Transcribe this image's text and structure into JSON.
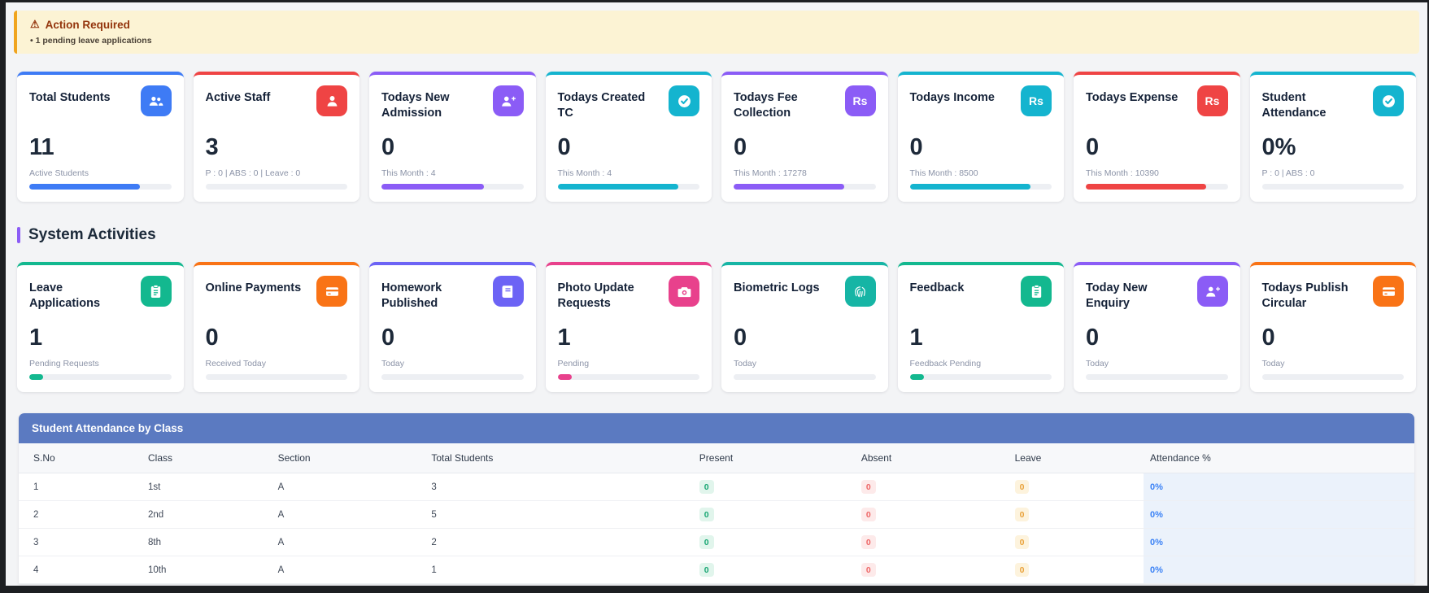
{
  "alert": {
    "title": "Action Required",
    "item": "• 1 pending leave applications",
    "accent": "#f0a41e",
    "bg": "#fcf3d4",
    "text_color": "#93340c"
  },
  "section": {
    "title": "System Activities",
    "accent": "#8c5cf6"
  },
  "stats_row1": [
    {
      "title": "Total Students",
      "icon": "users-icon",
      "accent": "#3e7bf5",
      "value": "11",
      "subtitle": "Active Students",
      "progress": 78
    },
    {
      "title": "Active Staff",
      "icon": "user-icon",
      "accent": "#ef4444",
      "value": "3",
      "subtitle": "P : 0 | ABS : 0 | Leave : 0",
      "progress": 0
    },
    {
      "title": "Todays New Admission",
      "icon": "user-plus-icon",
      "accent": "#8b5cf6",
      "value": "0",
      "subtitle": "This Month : 4",
      "progress": 72
    },
    {
      "title": "Todays Created TC",
      "icon": "check-circle-icon",
      "accent": "#14b4cf",
      "value": "0",
      "subtitle": "This Month : 4",
      "progress": 85
    },
    {
      "title": "Todays Fee Collection",
      "icon": "rupee-icon",
      "accent": "#8b5cf6",
      "value": "0",
      "subtitle": "This Month : 17278",
      "progress": 78
    },
    {
      "title": "Todays Income",
      "icon": "rupee-icon",
      "accent": "#14b4cf",
      "value": "0",
      "subtitle": "This Month : 8500",
      "progress": 85
    },
    {
      "title": "Todays Expense",
      "icon": "rupee-icon",
      "accent": "#ef4444",
      "value": "0",
      "subtitle": "This Month : 10390",
      "progress": 85
    },
    {
      "title": "Student Attendance",
      "icon": "check-circle-icon",
      "accent": "#14b4cf",
      "value": "0%",
      "subtitle": "P : 0 | ABS : 0",
      "progress": 0
    }
  ],
  "stats_row2": [
    {
      "title": "Leave Applications",
      "icon": "clipboard-icon",
      "accent": "#13b88f",
      "value": "1",
      "subtitle": "Pending Requests",
      "progress": 10
    },
    {
      "title": "Online Payments",
      "icon": "credit-card-icon",
      "accent": "#f97316",
      "value": "0",
      "subtitle": "Received Today",
      "progress": 0
    },
    {
      "title": "Homework Published",
      "icon": "book-icon",
      "accent": "#6c63f5",
      "value": "0",
      "subtitle": "Today",
      "progress": 0
    },
    {
      "title": "Photo Update Requests",
      "icon": "camera-icon",
      "accent": "#e8418c",
      "value": "1",
      "subtitle": "Pending",
      "progress": 10
    },
    {
      "title": "Biometric Logs",
      "icon": "fingerprint-icon",
      "accent": "#16b5a5",
      "value": "0",
      "subtitle": "Today",
      "progress": 0
    },
    {
      "title": "Feedback",
      "icon": "clipboard-icon",
      "accent": "#13b88f",
      "value": "1",
      "subtitle": "Feedback Pending",
      "progress": 10
    },
    {
      "title": "Today New Enquiry",
      "icon": "user-plus-icon",
      "accent": "#8b5cf6",
      "value": "0",
      "subtitle": "Today",
      "progress": 0
    },
    {
      "title": "Todays Publish Circular",
      "icon": "credit-card-icon",
      "accent": "#f97316",
      "value": "0",
      "subtitle": "Today",
      "progress": 0
    }
  ],
  "attendance_table": {
    "title": "Student Attendance by Class",
    "header_bg": "#5b7ac1",
    "columns": [
      "S.No",
      "Class",
      "Section",
      "Total Students",
      "Present",
      "Absent",
      "Leave",
      "Attendance %"
    ],
    "rows": [
      {
        "sno": "1",
        "class": "1st",
        "section": "A",
        "total": "3",
        "present": "0",
        "absent": "0",
        "leave": "0",
        "attendance": "0%"
      },
      {
        "sno": "2",
        "class": "2nd",
        "section": "A",
        "total": "5",
        "present": "0",
        "absent": "0",
        "leave": "0",
        "attendance": "0%"
      },
      {
        "sno": "3",
        "class": "8th",
        "section": "A",
        "total": "2",
        "present": "0",
        "absent": "0",
        "leave": "0",
        "attendance": "0%"
      },
      {
        "sno": "4",
        "class": "10th",
        "section": "A",
        "total": "1",
        "present": "0",
        "absent": "0",
        "leave": "0",
        "attendance": "0%"
      }
    ]
  }
}
